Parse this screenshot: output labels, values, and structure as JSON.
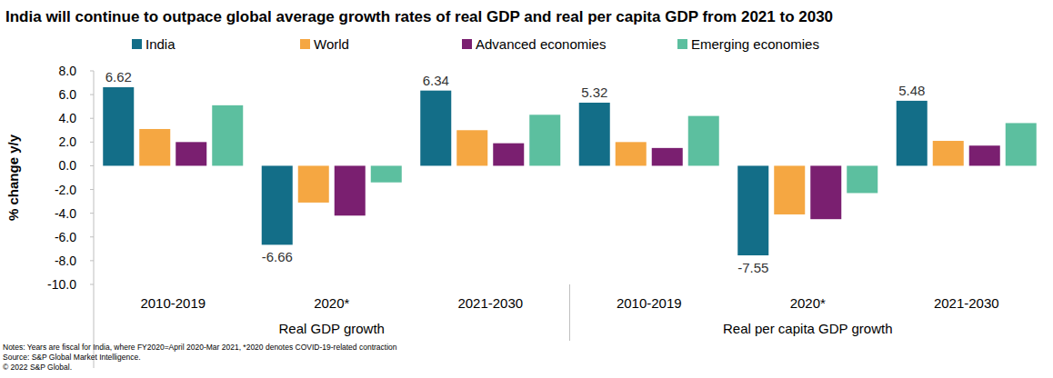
{
  "chart_data": {
    "type": "bar",
    "title": "India will  continue to outpace global average growth rates of real GDP and real per capita GDP from 2021 to 2030",
    "y_label": "% change y/y",
    "categories": [
      "2010-2019",
      "2020*",
      "2021-2030",
      "2010-2019",
      "2020*",
      "2021-2030"
    ],
    "x_group_labels": [
      "Real GDP growth",
      "Real per capita GDP growth"
    ],
    "series": [
      {
        "name": "India",
        "color": "#136e88",
        "values": [
          6.62,
          -6.66,
          6.34,
          5.32,
          -7.55,
          5.48
        ],
        "data_labels": true
      },
      {
        "name": "World",
        "color": "#f5a742",
        "values": [
          3.1,
          -3.1,
          3.0,
          2.0,
          -4.1,
          2.1
        ]
      },
      {
        "name": "Advanced economies",
        "color": "#7a1f70",
        "values": [
          2.0,
          -4.2,
          1.9,
          1.5,
          -4.5,
          1.7
        ]
      },
      {
        "name": "Emerging economies",
        "color": "#5cbf9f",
        "values": [
          5.1,
          -1.4,
          4.3,
          4.2,
          -2.3,
          3.6
        ]
      }
    ],
    "ylim": [
      -10,
      8
    ],
    "yticks": [
      {
        "value": -10,
        "label": "-10.0"
      },
      {
        "value": -8,
        "label": "-8.0"
      },
      {
        "value": -6,
        "label": "-6.0"
      },
      {
        "value": -4,
        "label": "-4.0"
      },
      {
        "value": -2,
        "label": "-2.0"
      },
      {
        "value": 0,
        "label": "0.0"
      },
      {
        "value": 2,
        "label": "2.0"
      },
      {
        "value": 4,
        "label": "4.0"
      },
      {
        "value": 6,
        "label": "6.0"
      },
      {
        "value": 8,
        "label": "8.0"
      }
    ],
    "grid": false,
    "legend": "top",
    "notes": [
      "Notes: Years are fiscal for India, where FY2020=April 2020-Mar 2021, *2020 denotes COVID-19-related contraction",
      "Source: S&P Global Market Intelligence.",
      "© 2022 S&P Global."
    ]
  }
}
